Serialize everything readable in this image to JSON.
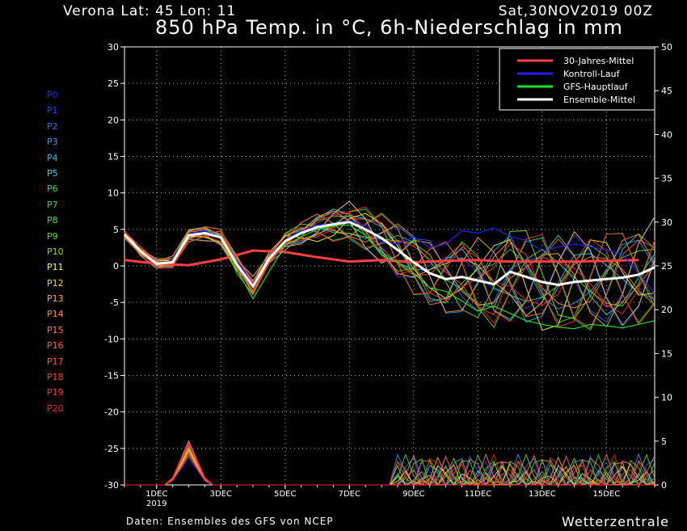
{
  "header": {
    "location": "Verona   Lat: 45 Lon: 11",
    "run": "Sat,30NOV2019 00Z",
    "title": "850 hPa Temp. in °C, 6h-Niederschlag in mm"
  },
  "footer": {
    "source": "Daten: Ensembles des GFS von NCEP",
    "brand": "Wetterzentrale"
  },
  "members": [
    {
      "name": "P0",
      "color": "#2020ff"
    },
    {
      "name": "P1",
      "color": "#2040ff"
    },
    {
      "name": "P2",
      "color": "#2070ff"
    },
    {
      "name": "P3",
      "color": "#20a0ff"
    },
    {
      "name": "P4",
      "color": "#20c0ff"
    },
    {
      "name": "P5",
      "color": "#20e0e0"
    },
    {
      "name": "P6",
      "color": "#20e080"
    },
    {
      "name": "P7",
      "color": "#20e060"
    },
    {
      "name": "P8",
      "color": "#40e040"
    },
    {
      "name": "P9",
      "color": "#60e020"
    },
    {
      "name": "P10",
      "color": "#80e020"
    },
    {
      "name": "P11",
      "color": "#ffff30"
    },
    {
      "name": "P12",
      "color": "#ffd040"
    },
    {
      "name": "P13",
      "color": "#ffb030"
    },
    {
      "name": "P14",
      "color": "#ff9030"
    },
    {
      "name": "P15",
      "color": "#ff8030"
    },
    {
      "name": "P16",
      "color": "#ff6030"
    },
    {
      "name": "P17",
      "color": "#ff5030"
    },
    {
      "name": "P18",
      "color": "#ff4030"
    },
    {
      "name": "P19",
      "color": "#ff3030"
    },
    {
      "name": "P20",
      "color": "#ff2020"
    }
  ],
  "chart_data": {
    "type": "line",
    "x_unit": "hours since 30NOV2019 00Z",
    "xlim": [
      0,
      396
    ],
    "ylim_left": [
      -30,
      30
    ],
    "ylim_right": [
      0,
      50
    ],
    "yticks_left": [
      30,
      25,
      20,
      15,
      10,
      5,
      0,
      -5,
      -10,
      -15,
      -20,
      -25,
      -30
    ],
    "yticks_right": [
      50,
      45,
      40,
      35,
      30,
      25,
      20,
      15,
      10,
      5,
      0
    ],
    "xticks": [
      {
        "label": "1DEC",
        "sub": "2019",
        "x": 24
      },
      {
        "label": "3DEC",
        "sub": "",
        "x": 72
      },
      {
        "label": "5DEC",
        "sub": "",
        "x": 120
      },
      {
        "label": "7DEC",
        "sub": "",
        "x": 168
      },
      {
        "label": "9DEC",
        "sub": "",
        "x": 216
      },
      {
        "label": "11DEC",
        "sub": "",
        "x": 264
      },
      {
        "label": "13DEC",
        "sub": "",
        "x": 312
      },
      {
        "label": "15DEC",
        "sub": "",
        "x": 360
      }
    ],
    "grid": true,
    "legend_position": "top-right",
    "legend": [
      {
        "label": "30-Jahres-Mittel",
        "color": "#ff4040"
      },
      {
        "label": "Kontroll-Lauf",
        "color": "#2020ff"
      },
      {
        "label": "GFS-Hauptlauf",
        "color": "#20e020"
      },
      {
        "label": "Ensemble-Mittel",
        "color": "#ffffff"
      }
    ],
    "climatology": {
      "x": [
        0,
        24,
        48,
        72,
        96,
        120,
        144,
        168,
        192,
        216,
        240,
        264,
        288,
        312,
        336,
        360,
        384
      ],
      "values": [
        0.8,
        0.3,
        0.1,
        0.9,
        2.1,
        1.9,
        1.2,
        0.6,
        0.8,
        0.5,
        0.7,
        0.8,
        0.6,
        0.6,
        0.6,
        0.7,
        0.8
      ]
    },
    "ensemble_mean": {
      "x": [
        0,
        12,
        24,
        36,
        48,
        60,
        72,
        84,
        96,
        108,
        120,
        132,
        144,
        156,
        168,
        180,
        192,
        204,
        216,
        228,
        240,
        252,
        264,
        276,
        288,
        300,
        312,
        324,
        336,
        348,
        360,
        372,
        384,
        396
      ],
      "values": [
        4.3,
        2.0,
        0.3,
        0.5,
        4.2,
        4.5,
        3.9,
        0.2,
        -2.8,
        1.0,
        3.4,
        4.5,
        5.3,
        5.7,
        6.0,
        5.0,
        3.8,
        2.2,
        0.5,
        -1.0,
        -1.8,
        -1.5,
        -2.0,
        -2.5,
        -0.8,
        -1.5,
        -2.2,
        -2.6,
        -2.2,
        -2.0,
        -1.8,
        -1.6,
        -1.2,
        -0.2
      ]
    },
    "control_run": {
      "x": [
        0,
        12,
        24,
        36,
        48,
        60,
        72,
        84,
        96,
        108,
        120,
        132,
        144,
        156,
        168,
        180,
        192,
        204,
        216,
        228,
        240,
        252,
        264,
        276,
        288,
        300,
        312,
        324,
        336,
        348,
        360,
        372,
        384,
        396
      ],
      "values": [
        4.3,
        2.1,
        0.2,
        0.8,
        4.4,
        4.8,
        4.0,
        0.5,
        -2.5,
        1.2,
        3.6,
        4.8,
        5.6,
        5.8,
        6.2,
        5.5,
        3.2,
        3.0,
        4.0,
        2.5,
        3.0,
        4.8,
        4.5,
        5.2,
        4.0,
        3.5,
        2.0,
        2.6,
        3.0,
        2.6,
        2.2,
        1.5,
        -1.0,
        -3.8
      ]
    },
    "gfs_main_run": {
      "x": [
        0,
        12,
        24,
        36,
        48,
        60,
        72,
        84,
        96,
        108,
        120,
        132,
        144,
        156,
        168,
        180,
        192,
        204,
        216,
        228,
        240,
        252,
        264,
        276,
        288,
        300,
        312,
        324,
        336,
        348,
        360,
        372,
        384,
        396
      ],
      "values": [
        4.3,
        2.0,
        0.4,
        0.6,
        4.1,
        4.6,
        3.8,
        -0.5,
        -4.5,
        -0.8,
        2.8,
        4.0,
        5.0,
        5.5,
        5.6,
        4.2,
        1.5,
        0.5,
        -1.0,
        -3.0,
        -3.5,
        -4.8,
        -6.2,
        -5.5,
        -6.5,
        -7.5,
        -8.0,
        -8.4,
        -8.6,
        -8.0,
        -8.2,
        -8.5,
        -8.0,
        -7.5
      ]
    },
    "precip_scale": "right axis, mm",
    "precip_peaks_x": [
      48,
      220,
      256,
      344
    ]
  }
}
